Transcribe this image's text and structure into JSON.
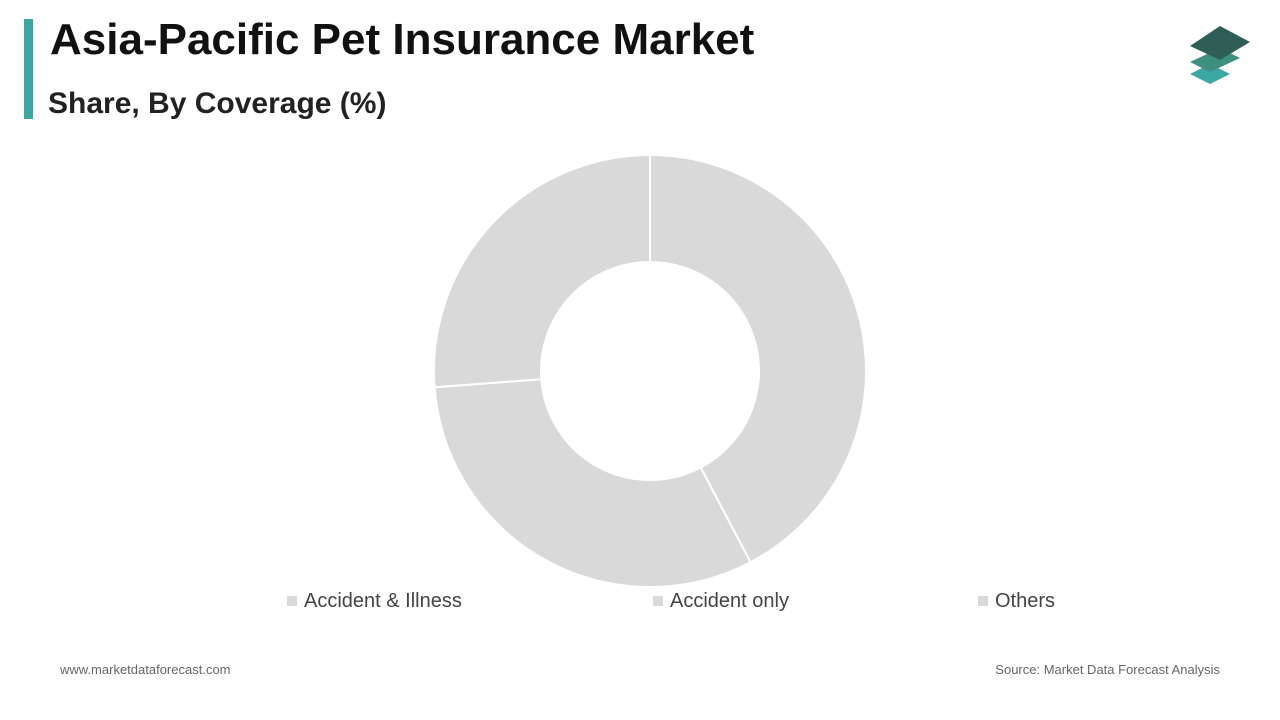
{
  "header": {
    "title": "Asia-Pacific Pet Insurance Market",
    "subtitle": "Share, By Coverage (%)"
  },
  "logo": {
    "icon": "stacked-layers-logo-icon",
    "colors": [
      "#2e5e55",
      "#3f8f80",
      "#3aa7a3"
    ]
  },
  "chart_data": {
    "type": "pie",
    "style": "donut",
    "title": "Asia-Pacific Pet Insurance Market",
    "subtitle": "Share, By Coverage (%)",
    "categories": [
      "Accident & Illness",
      "Accident only",
      "Others"
    ],
    "values": [
      42.3,
      31.5,
      26.2
    ],
    "colors": [
      "#d9d9d9",
      "#d9d9d9",
      "#d9d9d9"
    ],
    "start_angle_deg": 0,
    "direction": "clockwise",
    "legend_position": "bottom"
  },
  "footer": {
    "website": "www.marketdataforecast.com",
    "source": "Source: Market Data Forecast Analysis"
  }
}
